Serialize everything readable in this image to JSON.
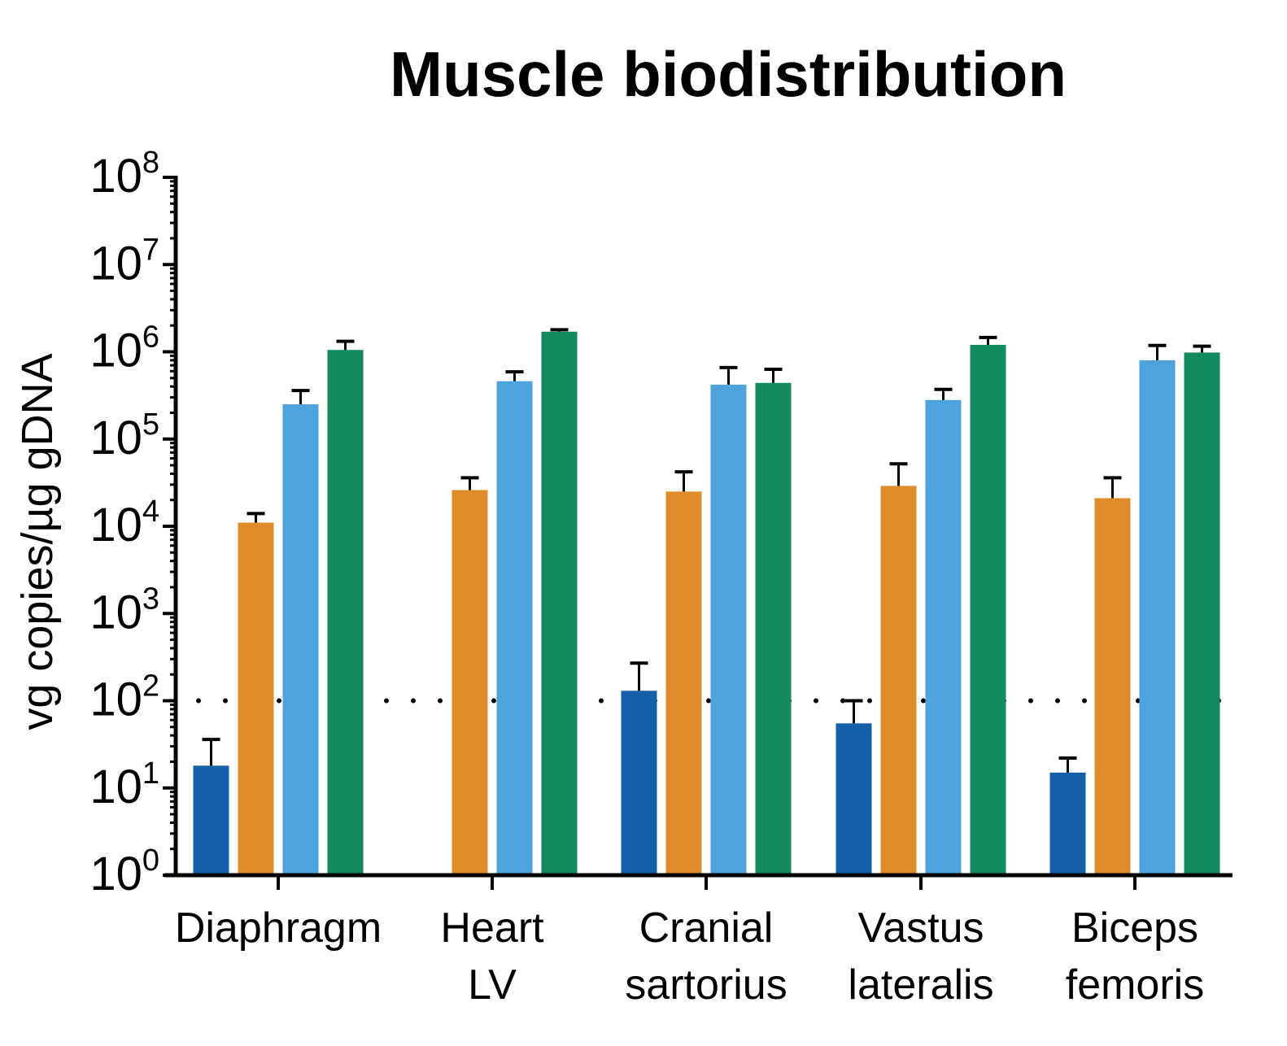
{
  "chart_data": {
    "type": "bar",
    "title": "Muscle biodistribution",
    "ylabel": "vg copies/µg gDNA",
    "xlabel": "",
    "yscale": "log",
    "ylim": [
      1,
      100000000
    ],
    "yticks": [
      {
        "value": 1,
        "base": "10",
        "exp": "0"
      },
      {
        "value": 10,
        "base": "10",
        "exp": "1"
      },
      {
        "value": 100,
        "base": "10",
        "exp": "2"
      },
      {
        "value": 1000,
        "base": "10",
        "exp": "3"
      },
      {
        "value": 10000,
        "base": "10",
        "exp": "4"
      },
      {
        "value": 100000,
        "base": "10",
        "exp": "5"
      },
      {
        "value": 1000000,
        "base": "10",
        "exp": "6"
      },
      {
        "value": 10000000,
        "base": "10",
        "exp": "7"
      },
      {
        "value": 100000000,
        "base": "10",
        "exp": "8"
      }
    ],
    "categories": [
      [
        "Diaphragm"
      ],
      [
        "Heart",
        "LV"
      ],
      [
        "Cranial",
        "sartorius"
      ],
      [
        "Vastus",
        "lateralis"
      ],
      [
        "Biceps",
        "femoris"
      ]
    ],
    "reference_line": {
      "value": 100,
      "style": "dotted"
    },
    "grid": false,
    "legend": "none",
    "series": [
      {
        "color": "#1560a8",
        "values": [
          18,
          null,
          130,
          55,
          15
        ],
        "error_upper": [
          36,
          null,
          270,
          100,
          22
        ]
      },
      {
        "color": "#e08c2a",
        "values": [
          11000,
          26000,
          25000,
          29000,
          21000
        ],
        "error_upper": [
          14000,
          36000,
          42000,
          52000,
          36000
        ]
      },
      {
        "color": "#4fa3dc",
        "values": [
          250000,
          460000,
          420000,
          280000,
          800000
        ],
        "error_upper": [
          360000,
          590000,
          660000,
          370000,
          1180000
        ]
      },
      {
        "color": "#138a5e",
        "values": [
          1050000,
          1700000,
          440000,
          1200000,
          980000
        ],
        "error_upper": [
          1320000,
          1790000,
          630000,
          1460000,
          1160000
        ]
      }
    ]
  }
}
